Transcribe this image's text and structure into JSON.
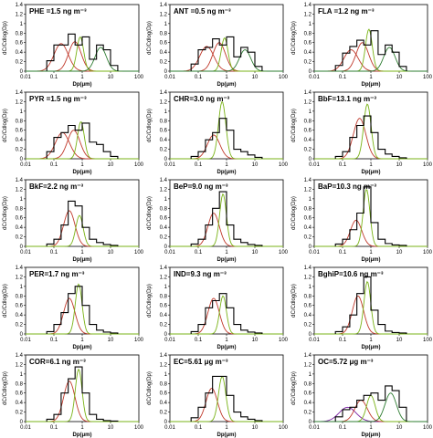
{
  "shared": {
    "ylabel": "dC/Cdlog(Dp)",
    "xlabel": "Dp(μm)",
    "x_ticks": [
      "0.01",
      "0.1",
      "1",
      "10",
      "100"
    ],
    "y_ticks": [
      "0",
      "0.2",
      "0.4",
      "0.6",
      "0.8",
      "1",
      "1.2",
      "1.4"
    ],
    "colors": {
      "histogram": "#000000",
      "mode_fine": "#7a1fa2",
      "mode_accum": "#c0392b",
      "mode_coarse_acc": "#7ab317",
      "mode_coarse": "#2e7d32"
    }
  },
  "chart_data": [
    {
      "type": "histogram",
      "title": "PHE =1.5 ng m⁻³",
      "xscale": "log",
      "xlim": [
        0.01,
        100
      ],
      "ylim": [
        0,
        1.4
      ],
      "bins": [
        0.056,
        0.1,
        0.18,
        0.32,
        0.56,
        1.0,
        1.8,
        3.2,
        5.6,
        10,
        18
      ],
      "values": [
        0.22,
        0.55,
        0.55,
        0.78,
        0.55,
        0.72,
        0.25,
        0.55,
        0.45,
        0.12
      ],
      "modes": [
        {
          "center": 0.18,
          "height": 0.58,
          "sigma": 0.25,
          "color_key": "mode_accum"
        },
        {
          "center": 0.55,
          "height": 0.62,
          "sigma": 0.22,
          "color_key": "mode_accum"
        },
        {
          "center": 0.85,
          "height": 0.72,
          "sigma": 0.12,
          "color_key": "mode_coarse_acc"
        },
        {
          "center": 4.5,
          "height": 0.5,
          "sigma": 0.2,
          "color_key": "mode_coarse"
        }
      ]
    },
    {
      "type": "histogram",
      "title": "ANT =0.5 ng m⁻³",
      "xscale": "log",
      "xlim": [
        0.01,
        100
      ],
      "ylim": [
        0,
        1.4
      ],
      "bins": [
        0.056,
        0.1,
        0.18,
        0.32,
        0.56,
        1.0,
        1.8,
        3.2,
        5.6,
        10,
        18
      ],
      "values": [
        0.15,
        0.45,
        0.5,
        0.68,
        0.55,
        0.72,
        0.3,
        0.5,
        0.4,
        0.1
      ],
      "modes": [
        {
          "center": 0.2,
          "height": 0.52,
          "sigma": 0.25,
          "color_key": "mode_accum"
        },
        {
          "center": 0.55,
          "height": 0.6,
          "sigma": 0.22,
          "color_key": "mode_accum"
        },
        {
          "center": 0.85,
          "height": 0.7,
          "sigma": 0.12,
          "color_key": "mode_coarse_acc"
        },
        {
          "center": 4.5,
          "height": 0.45,
          "sigma": 0.2,
          "color_key": "mode_coarse"
        }
      ]
    },
    {
      "type": "histogram",
      "title": "FLA =1.2 ng m⁻³",
      "xscale": "log",
      "xlim": [
        0.01,
        100
      ],
      "ylim": [
        0,
        1.4
      ],
      "bins": [
        0.056,
        0.1,
        0.18,
        0.32,
        0.56,
        1.0,
        1.8,
        3.2,
        5.6,
        10,
        18
      ],
      "values": [
        0.12,
        0.38,
        0.52,
        0.65,
        0.55,
        0.85,
        0.35,
        0.55,
        0.4,
        0.1
      ],
      "modes": [
        {
          "center": 0.2,
          "height": 0.45,
          "sigma": 0.25,
          "color_key": "mode_accum"
        },
        {
          "center": 0.5,
          "height": 0.6,
          "sigma": 0.22,
          "color_key": "mode_accum"
        },
        {
          "center": 0.85,
          "height": 0.88,
          "sigma": 0.12,
          "color_key": "mode_coarse_acc"
        },
        {
          "center": 4.5,
          "height": 0.5,
          "sigma": 0.2,
          "color_key": "mode_coarse"
        }
      ]
    },
    {
      "type": "histogram",
      "title": "PYR =1.5 ng m⁻³",
      "xscale": "log",
      "xlim": [
        0.01,
        100
      ],
      "ylim": [
        0,
        1.4
      ],
      "bins": [
        0.056,
        0.1,
        0.18,
        0.32,
        0.56,
        1.0,
        1.8,
        3.2,
        5.6,
        10,
        18
      ],
      "values": [
        0.15,
        0.45,
        0.55,
        0.7,
        0.6,
        0.75,
        0.35,
        0.3,
        0.15,
        0.05
      ],
      "modes": [
        {
          "center": 0.2,
          "height": 0.55,
          "sigma": 0.25,
          "color_key": "mode_accum"
        },
        {
          "center": 0.5,
          "height": 0.6,
          "sigma": 0.22,
          "color_key": "mode_accum"
        },
        {
          "center": 0.9,
          "height": 0.78,
          "sigma": 0.12,
          "color_key": "mode_coarse_acc"
        }
      ]
    },
    {
      "type": "histogram",
      "title": "CHR=3.0 ng m⁻³",
      "xscale": "log",
      "xlim": [
        0.01,
        100
      ],
      "ylim": [
        0,
        1.4
      ],
      "bins": [
        0.056,
        0.1,
        0.18,
        0.32,
        0.56,
        1.0,
        1.8,
        3.2,
        5.6,
        10,
        18
      ],
      "values": [
        0.05,
        0.15,
        0.4,
        0.55,
        0.85,
        0.6,
        0.2,
        0.15,
        0.08,
        0.03
      ],
      "modes": [
        {
          "center": 0.35,
          "height": 0.5,
          "sigma": 0.22,
          "color_key": "mode_accum"
        },
        {
          "center": 0.7,
          "height": 1.2,
          "sigma": 0.13,
          "color_key": "mode_coarse_acc"
        }
      ]
    },
    {
      "type": "histogram",
      "title": "BbF=13.1 ng m⁻³",
      "xscale": "log",
      "xlim": [
        0.01,
        100
      ],
      "ylim": [
        0,
        1.4
      ],
      "bins": [
        0.056,
        0.1,
        0.18,
        0.32,
        0.56,
        1.0,
        1.8,
        3.2,
        5.6,
        10,
        18
      ],
      "values": [
        0.05,
        0.15,
        0.45,
        0.7,
        0.9,
        0.55,
        0.2,
        0.1,
        0.05,
        0.02
      ],
      "modes": [
        {
          "center": 0.4,
          "height": 0.85,
          "sigma": 0.22,
          "color_key": "mode_accum"
        },
        {
          "center": 0.75,
          "height": 1.15,
          "sigma": 0.13,
          "color_key": "mode_coarse_acc"
        }
      ]
    },
    {
      "type": "histogram",
      "title": "BkF=2.2 ng m⁻³",
      "xscale": "log",
      "xlim": [
        0.01,
        100
      ],
      "ylim": [
        0,
        1.4
      ],
      "bins": [
        0.056,
        0.1,
        0.18,
        0.32,
        0.56,
        1.0,
        1.8,
        3.2,
        5.6,
        10,
        18
      ],
      "values": [
        0.05,
        0.15,
        0.45,
        0.95,
        0.85,
        0.4,
        0.15,
        0.08,
        0.04,
        0.02
      ],
      "modes": [
        {
          "center": 0.35,
          "height": 0.75,
          "sigma": 0.2,
          "color_key": "mode_accum"
        },
        {
          "center": 0.8,
          "height": 0.65,
          "sigma": 0.13,
          "color_key": "mode_coarse_acc"
        }
      ]
    },
    {
      "type": "histogram",
      "title": "BeP=9.0 ng m⁻³",
      "xscale": "log",
      "xlim": [
        0.01,
        100
      ],
      "ylim": [
        0,
        1.4
      ],
      "bins": [
        0.056,
        0.1,
        0.18,
        0.32,
        0.56,
        1.0,
        1.8,
        3.2,
        5.6,
        10,
        18
      ],
      "values": [
        0.05,
        0.15,
        0.45,
        0.8,
        1.15,
        0.45,
        0.15,
        0.08,
        0.04,
        0.02
      ],
      "modes": [
        {
          "center": 0.35,
          "height": 0.7,
          "sigma": 0.2,
          "color_key": "mode_accum"
        },
        {
          "center": 0.75,
          "height": 1.1,
          "sigma": 0.12,
          "color_key": "mode_coarse_acc"
        }
      ]
    },
    {
      "type": "histogram",
      "title": "BaP=10.3 ng m⁻³",
      "xscale": "log",
      "xlim": [
        0.01,
        100
      ],
      "ylim": [
        0,
        1.4
      ],
      "bins": [
        0.056,
        0.1,
        0.18,
        0.32,
        0.56,
        1.0,
        1.8,
        3.2,
        5.6,
        10,
        18
      ],
      "values": [
        0.05,
        0.15,
        0.35,
        0.7,
        1.25,
        0.5,
        0.15,
        0.06,
        0.03,
        0.02
      ],
      "modes": [
        {
          "center": 0.3,
          "height": 0.55,
          "sigma": 0.2,
          "color_key": "mode_accum"
        },
        {
          "center": 0.7,
          "height": 1.2,
          "sigma": 0.12,
          "color_key": "mode_coarse_acc"
        }
      ]
    },
    {
      "type": "histogram",
      "title": "PER=1.7 ng m⁻³",
      "xscale": "log",
      "xlim": [
        0.01,
        100
      ],
      "ylim": [
        0,
        1.4
      ],
      "bins": [
        0.056,
        0.1,
        0.18,
        0.32,
        0.56,
        1.0,
        1.8,
        3.2,
        5.6,
        10,
        18
      ],
      "values": [
        0.05,
        0.2,
        0.45,
        0.85,
        1.0,
        0.6,
        0.2,
        0.08,
        0.04,
        0.02
      ],
      "modes": [
        {
          "center": 0.35,
          "height": 0.75,
          "sigma": 0.2,
          "color_key": "mode_accum"
        },
        {
          "center": 0.75,
          "height": 1.05,
          "sigma": 0.12,
          "color_key": "mode_coarse_acc"
        }
      ]
    },
    {
      "type": "histogram",
      "title": "IND=9.3 ng m⁻³",
      "xscale": "log",
      "xlim": [
        0.01,
        100
      ],
      "ylim": [
        0,
        1.4
      ],
      "bins": [
        0.056,
        0.1,
        0.18,
        0.32,
        0.56,
        1.0,
        1.8,
        3.2,
        5.6,
        10,
        18
      ],
      "values": [
        0.05,
        0.2,
        0.55,
        0.7,
        0.85,
        0.55,
        0.2,
        0.08,
        0.04,
        0.02
      ],
      "modes": [
        {
          "center": 0.35,
          "height": 0.75,
          "sigma": 0.2,
          "color_key": "mode_accum"
        },
        {
          "center": 0.75,
          "height": 0.8,
          "sigma": 0.12,
          "color_key": "mode_coarse_acc"
        }
      ]
    },
    {
      "type": "histogram",
      "title": "BghiP=10.6 ng m⁻³",
      "xscale": "log",
      "xlim": [
        0.01,
        100
      ],
      "ylim": [
        0,
        1.4
      ],
      "bins": [
        0.056,
        0.1,
        0.18,
        0.32,
        0.56,
        1.0,
        1.8,
        3.2,
        5.6,
        10,
        18
      ],
      "values": [
        0.05,
        0.15,
        0.4,
        0.85,
        1.2,
        0.5,
        0.2,
        0.06,
        0.03,
        0.02
      ],
      "modes": [
        {
          "center": 0.35,
          "height": 0.8,
          "sigma": 0.2,
          "color_key": "mode_accum"
        },
        {
          "center": 0.75,
          "height": 1.1,
          "sigma": 0.12,
          "color_key": "mode_coarse_acc"
        }
      ]
    },
    {
      "type": "histogram",
      "title": "COR=6.1 ng m⁻³",
      "xscale": "log",
      "xlim": [
        0.01,
        100
      ],
      "ylim": [
        0,
        1.4
      ],
      "bins": [
        0.056,
        0.1,
        0.18,
        0.32,
        0.56,
        1.0,
        1.8,
        3.2,
        5.6,
        10,
        18
      ],
      "values": [
        0.05,
        0.15,
        0.6,
        0.9,
        1.15,
        0.6,
        0.15,
        0.05,
        0.02,
        0.01
      ],
      "modes": [
        {
          "center": 0.35,
          "height": 0.85,
          "sigma": 0.2,
          "color_key": "mode_accum"
        },
        {
          "center": 0.75,
          "height": 1.1,
          "sigma": 0.12,
          "color_key": "mode_coarse_acc"
        }
      ]
    },
    {
      "type": "histogram",
      "title": "EC=5.61 μg m⁻³",
      "xscale": "log",
      "xlim": [
        0.01,
        100
      ],
      "ylim": [
        0,
        1.4
      ],
      "bins": [
        0.056,
        0.1,
        0.18,
        0.32,
        0.56,
        1.0,
        1.8,
        3.2,
        5.6,
        10,
        18
      ],
      "values": [
        0.08,
        0.3,
        0.6,
        0.95,
        0.95,
        0.55,
        0.2,
        0.1,
        0.05,
        0.02
      ],
      "modes": [
        {
          "center": 0.3,
          "height": 0.7,
          "sigma": 0.2,
          "color_key": "mode_accum"
        },
        {
          "center": 0.7,
          "height": 0.95,
          "sigma": 0.13,
          "color_key": "mode_coarse_acc"
        }
      ]
    },
    {
      "type": "histogram",
      "title": "OC=5.72 μg m⁻³",
      "xscale": "log",
      "xlim": [
        0.01,
        100
      ],
      "ylim": [
        0,
        1.4
      ],
      "bins": [
        0.056,
        0.1,
        0.18,
        0.32,
        0.56,
        1.0,
        1.8,
        3.2,
        5.6,
        10,
        18
      ],
      "values": [
        0.1,
        0.25,
        0.3,
        0.45,
        0.55,
        0.6,
        0.45,
        0.75,
        0.65,
        0.3
      ],
      "modes": [
        {
          "center": 0.15,
          "height": 0.3,
          "sigma": 0.3,
          "color_key": "mode_fine"
        },
        {
          "center": 0.45,
          "height": 0.45,
          "sigma": 0.22,
          "color_key": "mode_accum"
        },
        {
          "center": 1.0,
          "height": 0.55,
          "sigma": 0.15,
          "color_key": "mode_coarse_acc"
        },
        {
          "center": 5.0,
          "height": 0.6,
          "sigma": 0.2,
          "color_key": "mode_coarse"
        }
      ]
    }
  ]
}
